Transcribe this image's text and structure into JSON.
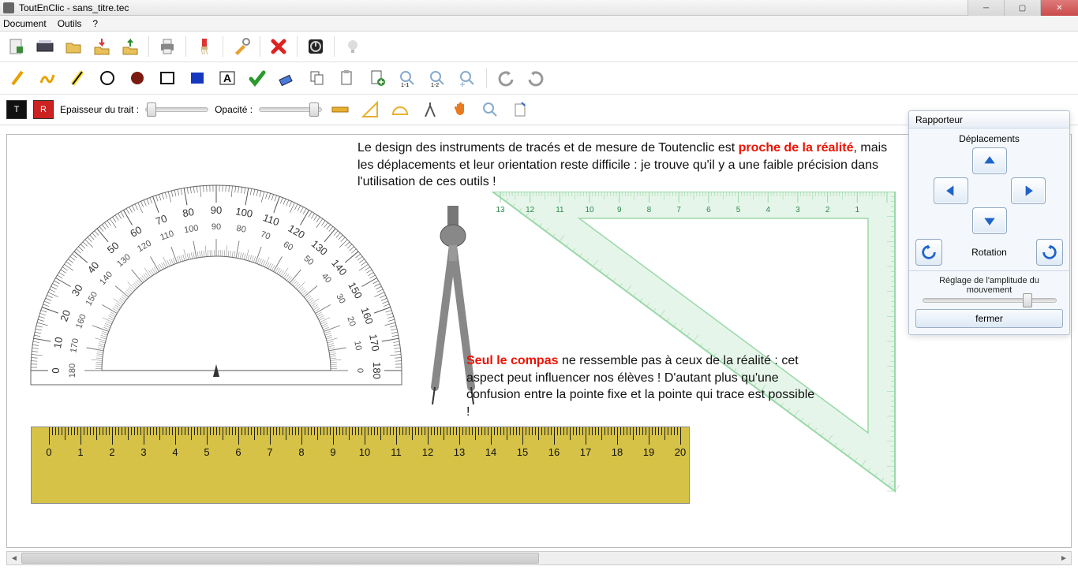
{
  "title": "ToutEnClic - sans_titre.tec",
  "menu": {
    "document": "Document",
    "outils": "Outils",
    "help": "?"
  },
  "row3": {
    "t_label": "T",
    "r_label": "R",
    "thickness_label": "Epaisseur du trait :",
    "opacity_label": "Opacité :",
    "thickness_pos": 0.02,
    "opacity_pos": 0.92
  },
  "panel": {
    "title": "Rapporteur",
    "moves": "Déplacements",
    "rotation": "Rotation",
    "amplitude": "Réglage de l'amplitude du mouvement",
    "close": "fermer",
    "amp_pos": 0.8,
    "arrow_color": "#1e63c8"
  },
  "text1": {
    "pre": "Le design des instruments de tracés et de mesure de Toutenclic est ",
    "red": "proche de la réalité",
    "post": ", mais les  déplacements et leur orientation reste difficile : je trouve qu'il y a une faible précision dans l'utilisation de ces outils !"
  },
  "text2": {
    "red": "Seul le compas",
    "post": " ne ressemble pas à ceux de la réalité : cet aspect peut influencer nos élèves ! D'autant plus qu'une confusion entre la pointe fixe et la pointe qui trace est possible !"
  },
  "ruler": {
    "min": 0,
    "max": 20,
    "color": "#d6c246",
    "tick_color": "#222"
  },
  "setsquare": {
    "color": "#9ad8a8",
    "numbers": [
      13,
      12,
      11,
      10,
      9,
      8,
      7,
      6,
      5,
      4,
      3,
      2,
      1
    ]
  },
  "protractor": {
    "outer": [
      0,
      10,
      20,
      30,
      40,
      50,
      60,
      70,
      80,
      90,
      100,
      110,
      120,
      130,
      140,
      150,
      160,
      170,
      180
    ],
    "inner": [
      180,
      170,
      160,
      150,
      140,
      130,
      120,
      110,
      100,
      90,
      80,
      70,
      60,
      50,
      40,
      30,
      20,
      10,
      0
    ]
  },
  "colors": {
    "accent_blue": "#1e63c8",
    "red_text": "#e01010",
    "ruler_fill": "#d6c246",
    "triangle": "#9ad8a8",
    "compass": "#888"
  }
}
